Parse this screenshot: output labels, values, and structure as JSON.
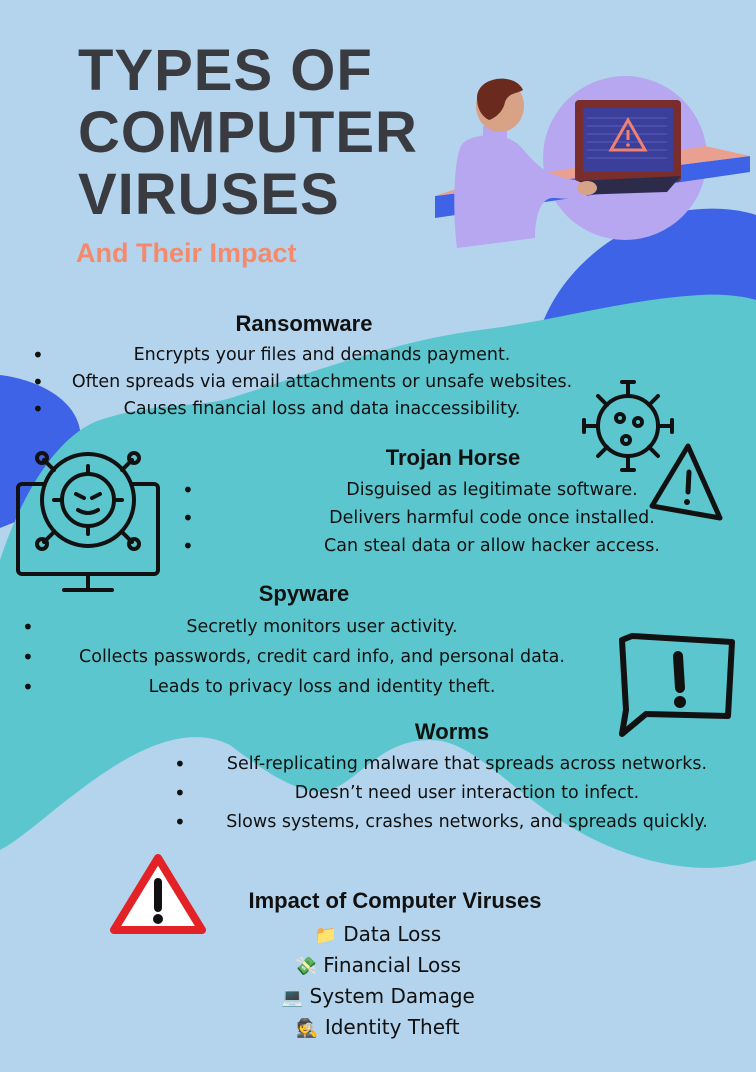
{
  "header": {
    "title_lines": [
      "TYPES OF",
      "COMPUTER",
      "VIRUSES"
    ],
    "subtitle": "And Their Impact"
  },
  "sections": {
    "ransomware": {
      "heading": "Ransomware",
      "bullets": [
        "Encrypts your files and demands payment.",
        "Often spreads via email attachments or unsafe websites.",
        "Causes financial loss and data inaccessibility."
      ]
    },
    "trojan": {
      "heading": "Trojan Horse",
      "bullets": [
        "Disguised as legitimate software.",
        "Delivers harmful code once installed.",
        "Can steal data or allow hacker access."
      ]
    },
    "spyware": {
      "heading": "Spyware",
      "bullets": [
        "Secretly monitors user activity.",
        "Collects passwords, credit card info, and personal data.",
        "Leads to privacy loss and identity theft."
      ]
    },
    "worms": {
      "heading": "Worms",
      "bullets": [
        "Self-replicating malware that spreads across networks.",
        "Doesn’t need user interaction to infect.",
        "Slows systems, crashes networks, and spreads quickly."
      ]
    }
  },
  "impact": {
    "heading": "Impact of Computer Viruses",
    "items": [
      {
        "icon": "📁",
        "label": "Data Loss"
      },
      {
        "icon": "💸",
        "label": "Financial Loss"
      },
      {
        "icon": "💻",
        "label": "System Damage"
      },
      {
        "icon": "🕵",
        "label": "Identity Theft"
      }
    ]
  },
  "icons": {
    "illustration": "person-at-laptop-warning-illustration",
    "virus": "virus-icon",
    "warning_triangle": "warning-triangle-icon",
    "infected_monitor": "infected-monitor-icon",
    "alert_bubble": "alert-speech-bubble-icon",
    "red_warning": "red-warning-sign-icon"
  },
  "colors": {
    "background": "#b3d4ec",
    "teal_blob": "#5bc6cd",
    "blue_blob": "#3f63e6",
    "title": "#3a3b40",
    "subtitle": "#f4896b",
    "purple": "#b7a6f0",
    "warning_red": "#e32228"
  }
}
